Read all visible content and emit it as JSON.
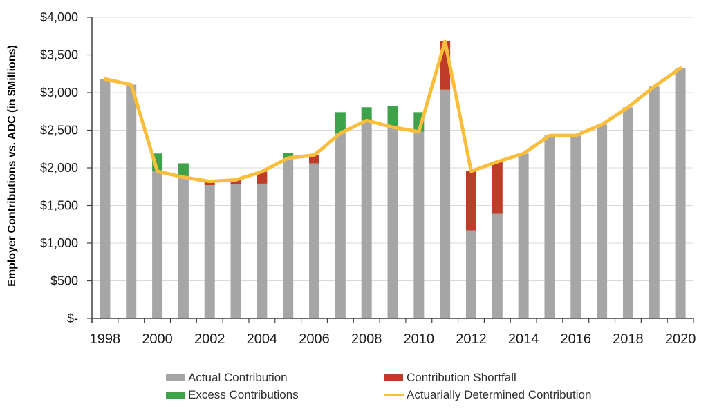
{
  "chart_data": {
    "type": "bar",
    "subtype": "stacked-bars-with-line-overlay",
    "title": "",
    "xlabel": "",
    "ylabel": "Employer Contributions vs. ADC (in $Millions)",
    "ylim": [
      0,
      4000
    ],
    "ytick_step": 500,
    "ytick_labels": [
      "$-",
      "$500",
      "$1,000",
      "$1,500",
      "$2,000",
      "$2,500",
      "$3,000",
      "$3,500",
      "$4,000"
    ],
    "xtick_labels": [
      "1998",
      "2000",
      "2002",
      "2004",
      "2006",
      "2008",
      "2010",
      "2012",
      "2014",
      "2016",
      "2018",
      "2020"
    ],
    "grid": true,
    "legend_position": "bottom",
    "categories": [
      1998,
      1999,
      2000,
      2001,
      2002,
      2003,
      2004,
      2005,
      2006,
      2007,
      2008,
      2009,
      2010,
      2011,
      2012,
      2013,
      2014,
      2015,
      2016,
      2017,
      2018,
      2019,
      2020
    ],
    "series": [
      {
        "name": "Actual Contribution",
        "type": "bar",
        "color": "#A6A6A6",
        "values": [
          3180,
          3105,
          2190,
          2060,
          1770,
          1780,
          1790,
          2200,
          2060,
          2740,
          2805,
          2820,
          2740,
          3040,
          1170,
          1390,
          2190,
          2430,
          2430,
          2575,
          2805,
          3080,
          3325
        ]
      },
      {
        "name": "Excess Contributions",
        "type": "bar-segment",
        "color": "#3EA24B",
        "values": [
          0,
          0,
          235,
          185,
          0,
          0,
          0,
          70,
          0,
          280,
          175,
          280,
          260,
          0,
          0,
          0,
          0,
          0,
          0,
          0,
          0,
          0,
          0
        ]
      },
      {
        "name": "Contribution Shortfall",
        "type": "bar-segment",
        "color": "#BD3D28",
        "values": [
          0,
          0,
          0,
          0,
          50,
          60,
          160,
          0,
          110,
          0,
          0,
          0,
          0,
          640,
          785,
          690,
          0,
          0,
          0,
          0,
          0,
          0,
          0
        ]
      },
      {
        "name": "Actuarially Determined Contribution",
        "type": "line",
        "color": "#FBBE3B",
        "values": [
          3180,
          3105,
          1955,
          1875,
          1820,
          1840,
          1950,
          2130,
          2170,
          2460,
          2630,
          2540,
          2480,
          3680,
          1955,
          2080,
          2190,
          2430,
          2430,
          2575,
          2805,
          3080,
          3325
        ]
      }
    ],
    "colors": {
      "gridline": "#D9D9D9",
      "axis": "#404040",
      "tick_text": "#1a1a1a"
    }
  }
}
